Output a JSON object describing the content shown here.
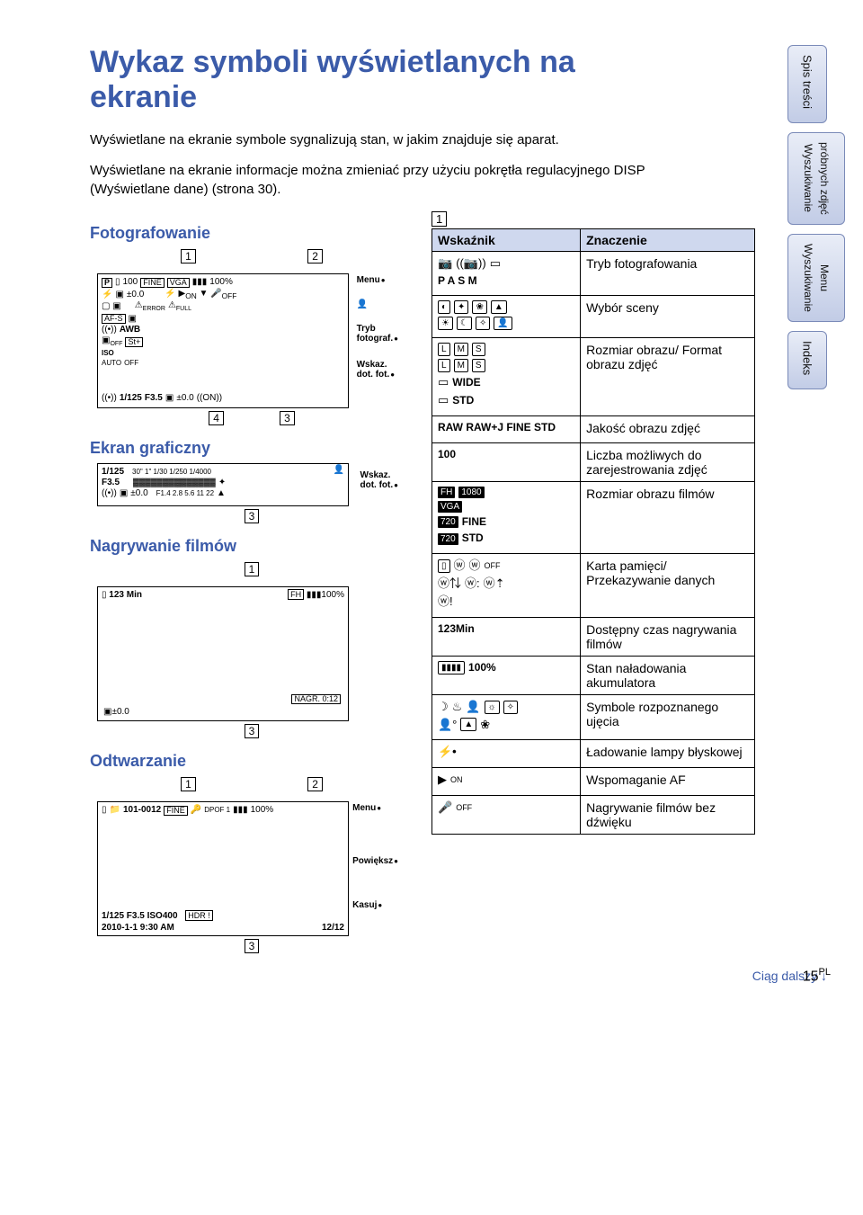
{
  "page": {
    "title": "Wykaz symboli wyświetlanych na ekranie",
    "intro1": "Wyświetlane na ekranie symbole sygnalizują stan, w jakim znajduje się aparat.",
    "intro2": "Wyświetlane na ekranie informacje można zmieniać przy użyciu pokrętła regulacyjnego DISP (Wyświetlane dane) (strona 30).",
    "page_number": "15",
    "page_suffix": "PL",
    "continued": "Ciąg dalszy ↓"
  },
  "sidetabs": [
    {
      "lines": [
        "Spis treści"
      ]
    },
    {
      "lines": [
        "Wyszukiwanie",
        "próbnych zdjęć"
      ]
    },
    {
      "lines": [
        "Wyszukiwanie",
        "Menu"
      ]
    },
    {
      "lines": [
        "Indeks"
      ]
    }
  ],
  "sections": {
    "foto": "Fotografowanie",
    "ekran": "Ekran graficzny",
    "nagr": "Nagrywanie filmów",
    "odtw": "Odtwarzanie"
  },
  "screen_foto": {
    "top_tags": [
      "1",
      "2"
    ],
    "mode": "P",
    "count": "100",
    "fine": "FINE",
    "vga": "VGA",
    "batt": "100%",
    "ev": "±0.0",
    "on": "ON",
    "off": "OFF",
    "error": "ERROR",
    "full": "FULL",
    "afs": "AF-S",
    "awb": "AWB",
    "iso": "ISO",
    "auto": "AUTO",
    "shutter": "1/125",
    "fnum": "F3.5",
    "ev2": "±0.0",
    "menu": "Menu",
    "tryb": "Tryb",
    "fotograf": "fotograf.",
    "wskaz": "Wskaz.",
    "dotfot": "dot. fot.",
    "bottom_tags": [
      "4",
      "3"
    ]
  },
  "screen_ekran": {
    "shutter": "1/125",
    "fnum": "F3.5",
    "ev": "±0.0",
    "scale_top": "30\" 1\"  1/30   1/250   1/4000",
    "scale_bot": "F1.4  2.8   5.6   11   22",
    "wskaz": "Wskaz.",
    "dotfot": "dot. fot.",
    "bottom_tag": "3"
  },
  "screen_nagr": {
    "top_tag": "1",
    "time": "123 Min",
    "fh": "FH",
    "batt": "100%",
    "nagr": "NAGR. 0:12",
    "ev": "±0.0",
    "bottom_tag": "3"
  },
  "screen_odtw": {
    "top_tags": [
      "1",
      "2"
    ],
    "folder": "101-0012",
    "fine": "FINE",
    "dpof": "DPOF 1",
    "batt": "100%",
    "menu": "Menu",
    "powieksz": "Powiększ",
    "info": "1/125   F3.5  ISO400",
    "hdr": "HDR !",
    "date": "2010-1-1   9:30 AM",
    "frame": "12/12",
    "kasuj": "Kasuj",
    "bottom_tag": "3"
  },
  "table": {
    "box1": "1",
    "header_indicator": "Wskaźnik",
    "header_meaning": "Znaczenie",
    "rows": [
      {
        "ind_html": "<div class='sym-row'><span class='ic'>📷</span><span class='ic'>((📷))</span><span class='ic'>▭</span></div><div class='sym-row bold'>P A S M</div>",
        "meaning": "Tryb fotografowania"
      },
      {
        "ind_html": "<div class='sym-row'><span class='outl'>◐</span><span class='outl'>✦</span><span class='outl'>❀</span><span class='outl'>▲</span></div><div class='sym-row'><span class='outl'>☀</span><span class='outl'>☾</span><span class='outl'>✧</span><span class='outl'>👤</span></div>",
        "meaning": "Wybór sceny"
      },
      {
        "ind_html": "<div class='sym-row'><span class='outl'>L</span><span class='outl'>M</span><span class='outl'>S</span></div><div class='sym-row'><span class='outl'>L</span><span class='outl'>M</span><span class='outl'>S</span></div><div class='sym-row'><span class='ic'>▭</span><span class='bold'>WIDE</span></div><div class='sym-row'><span class='ic'>▭</span><span class='bold'>STD</span></div>",
        "meaning": "Rozmiar obrazu/ Format obrazu zdjęć"
      },
      {
        "ind_html": "<div class='sym-row bold'>RAW RAW+J FINE STD</div>",
        "meaning": "Jakość obrazu zdjęć"
      },
      {
        "ind_html": "<div class='sym-row bold'>100</div>",
        "meaning": "Liczba możliwych do zarejestrowania zdjęć"
      },
      {
        "ind_html": "<div class='sym-row'><span class='blk'>FH</span> <span class='blk'>1080</span></div><div class='sym-row'><span class='blk'>VGA</span></div><div class='sym-row'><span class='blk'>720</span><span class='bold'>FINE</span></div><div class='sym-row'><span class='blk'>720</span><span class='bold'>STD</span></div>",
        "meaning": "Rozmiar obrazu filmów"
      },
      {
        "ind_html": "<div class='sym-row'><span class='outl'>▯</span><span class='ic'>ⓦ</span><span class='ic'>ⓦ</span><span style='font-size:9px'>OFF</span></div><div class='sym-row'><span class='ic'>ⓦ⇅</span><span class='ic'>ⓦ:</span><span class='ic'>ⓦ⇡</span></div><div class='sym-row'><span class='ic'>ⓦ!</span></div>",
        "meaning": "Karta pamięci/ Przekazywanie danych"
      },
      {
        "ind_html": "<div class='sym-row bold'>123Min</div>",
        "meaning": "Dostępny czas nagrywania filmów"
      },
      {
        "ind_html": "<div class='sym-row'><span class='outl'>▮▮▮▮</span> <span class='bold'>100%</span></div>",
        "meaning": "Stan naładowania akumulatora"
      },
      {
        "ind_html": "<div class='sym-row'><span class='ic'>☽</span><span class='ic'>♨</span><span class='ic'>👤</span><span class='outl'>☼</span><span class='outl'>✧</span></div><div class='sym-row'><span class='ic'>👤°</span><span class='outl'>▲</span><span class='ic'>❀</span></div>",
        "meaning": "Symbole rozpoznanego ujęcia"
      },
      {
        "ind_html": "<div class='sym-row'><span class='ic bold'>⚡•</span></div>",
        "meaning": "Ładowanie lampy błyskowej"
      },
      {
        "ind_html": "<div class='sym-row'><span class='ic'>▶</span><span style='font-size:9px'>ON</span></div>",
        "meaning": "Wspomaganie AF"
      },
      {
        "ind_html": "<div class='sym-row'><span class='ic'>🎤</span><span style='font-size:9px'>OFF</span></div>",
        "meaning": "Nagrywanie filmów bez dźwięku"
      }
    ]
  }
}
